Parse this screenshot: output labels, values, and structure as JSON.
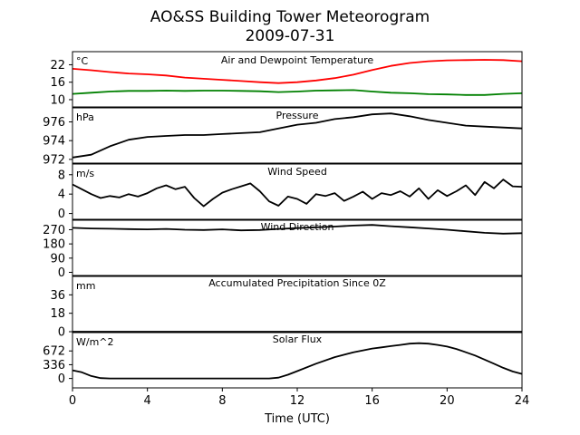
{
  "figure": {
    "title_line1": "AO&SS Building Tower Meteorogram",
    "title_line2": "2009-07-31",
    "xlabel": "Time (UTC)"
  },
  "chart_data": {
    "type": "line",
    "x_range": [
      0,
      24
    ],
    "x_ticks": [
      0,
      4,
      8,
      12,
      16,
      20,
      24
    ],
    "panels": [
      {
        "id": "temperature",
        "label": "Air and Dewpoint Temperature",
        "unit": "°C",
        "ylim": [
          7.5,
          26.5
        ],
        "yticks": [
          10,
          16,
          22
        ],
        "series": [
          {
            "color": "#ff0000",
            "x": [
              0,
              1,
              2,
              3,
              4,
              5,
              6,
              7,
              8,
              9,
              10,
              11,
              12,
              13,
              14,
              15,
              16,
              17,
              18,
              19,
              20,
              21,
              22,
              23,
              24
            ],
            "y": [
              20.6,
              20.1,
              19.5,
              19.0,
              18.7,
              18.3,
              17.6,
              17.2,
              16.8,
              16.4,
              16.0,
              15.7,
              16.0,
              16.6,
              17.4,
              18.6,
              20.2,
              21.6,
              22.6,
              23.2,
              23.5,
              23.6,
              23.7,
              23.6,
              23.2
            ]
          },
          {
            "color": "#008000",
            "x": [
              0,
              1,
              2,
              3,
              4,
              5,
              6,
              7,
              8,
              9,
              10,
              11,
              12,
              13,
              14,
              15,
              16,
              17,
              18,
              19,
              20,
              21,
              22,
              23,
              24
            ],
            "y": [
              12.0,
              12.4,
              12.8,
              13.0,
              13.0,
              13.1,
              13.0,
              13.1,
              13.1,
              13.0,
              12.9,
              12.6,
              12.8,
              13.1,
              13.2,
              13.3,
              12.8,
              12.4,
              12.2,
              11.9,
              11.8,
              11.6,
              11.6,
              12.0,
              12.2
            ]
          }
        ]
      },
      {
        "id": "pressure",
        "label": "Pressure",
        "unit": "hPa",
        "ylim": [
          971.6,
          977.5
        ],
        "yticks": [
          972,
          974,
          976
        ],
        "series": [
          {
            "color": "#000000",
            "x": [
              0,
              1,
              2,
              3,
              4,
              5,
              6,
              7,
              8,
              9,
              10,
              11,
              12,
              13,
              14,
              15,
              16,
              17,
              18,
              19,
              20,
              21,
              22,
              23,
              24
            ],
            "y": [
              972.2,
              972.5,
              973.4,
              974.1,
              974.4,
              974.5,
              974.6,
              974.6,
              974.7,
              974.8,
              974.9,
              975.3,
              975.7,
              975.9,
              976.3,
              976.5,
              976.8,
              976.9,
              976.6,
              976.2,
              975.9,
              975.6,
              975.5,
              975.4,
              975.3
            ]
          }
        ]
      },
      {
        "id": "wind_speed",
        "label": "Wind Speed",
        "unit": "m/s",
        "ylim": [
          -1.2,
          10.2
        ],
        "yticks": [
          0,
          4,
          8
        ],
        "series": [
          {
            "color": "#000000",
            "x": [
              0,
              0.5,
              1,
              1.5,
              2,
              2.5,
              3,
              3.5,
              4,
              4.5,
              5,
              5.5,
              6,
              6.5,
              7,
              7.5,
              8,
              8.5,
              9,
              9.5,
              10,
              10.5,
              11,
              11.5,
              12,
              12.5,
              13,
              13.5,
              14,
              14.5,
              15,
              15.5,
              16,
              16.5,
              17,
              17.5,
              18,
              18.5,
              19,
              19.5,
              20,
              20.5,
              21,
              21.5,
              22,
              22.5,
              23,
              23.5,
              24
            ],
            "y": [
              6.0,
              5.0,
              4.0,
              3.2,
              3.6,
              3.3,
              4.0,
              3.5,
              4.2,
              5.2,
              5.8,
              5.0,
              5.5,
              3.2,
              1.5,
              3.0,
              4.3,
              5.0,
              5.6,
              6.2,
              4.6,
              2.5,
              1.6,
              3.5,
              3.0,
              2.0,
              4.0,
              3.6,
              4.2,
              2.6,
              3.5,
              4.5,
              3.0,
              4.2,
              3.8,
              4.6,
              3.5,
              5.2,
              3.0,
              4.8,
              3.6,
              4.6,
              5.8,
              3.8,
              6.5,
              5.2,
              7.0,
              5.6,
              5.5
            ]
          }
        ]
      },
      {
        "id": "wind_direction",
        "label": "Wind Direction",
        "unit": "",
        "ylim": [
          -20,
          330
        ],
        "yticks": [
          0,
          90,
          180,
          270
        ],
        "series": [
          {
            "color": "#000000",
            "x": [
              0,
              1,
              2,
              3,
              4,
              5,
              6,
              7,
              8,
              9,
              10,
              11,
              12,
              13,
              14,
              15,
              16,
              17,
              18,
              19,
              20,
              21,
              22,
              23,
              24
            ],
            "y": [
              282,
              278,
              276,
              274,
              272,
              275,
              270,
              268,
              272,
              266,
              268,
              275,
              280,
              285,
              290,
              296,
              300,
              292,
              285,
              278,
              270,
              260,
              250,
              245,
              248
            ]
          }
        ]
      },
      {
        "id": "precipitation",
        "label": "Accumulated Precipitation Since 0Z",
        "unit": "mm",
        "ylim": [
          0,
          54
        ],
        "yticks": [
          0,
          18,
          36
        ],
        "series": [
          {
            "color": "#000000",
            "x": [
              0,
              24
            ],
            "y": [
              0,
              0
            ]
          }
        ]
      },
      {
        "id": "solar_flux",
        "label": "Solar Flux",
        "unit": "W/m^2",
        "ylim": [
          -230,
          1120
        ],
        "yticks": [
          0,
          336,
          672
        ],
        "series": [
          {
            "color": "#000000",
            "x": [
              0,
              0.5,
              1,
              1.5,
              2,
              3,
              4,
              5,
              6,
              7,
              8,
              9,
              10,
              10.5,
              11,
              11.5,
              12,
              13,
              14,
              15,
              16,
              16.5,
              17,
              17.5,
              18,
              18.5,
              19,
              19.5,
              20,
              20.5,
              21,
              21.5,
              22,
              22.5,
              23,
              23.5,
              24
            ],
            "y": [
              200,
              150,
              60,
              10,
              0,
              0,
              0,
              0,
              0,
              0,
              0,
              0,
              0,
              0,
              20,
              90,
              180,
              360,
              520,
              640,
              730,
              760,
              790,
              820,
              850,
              860,
              850,
              820,
              780,
              720,
              640,
              560,
              460,
              360,
              260,
              170,
              110
            ]
          }
        ]
      }
    ]
  }
}
